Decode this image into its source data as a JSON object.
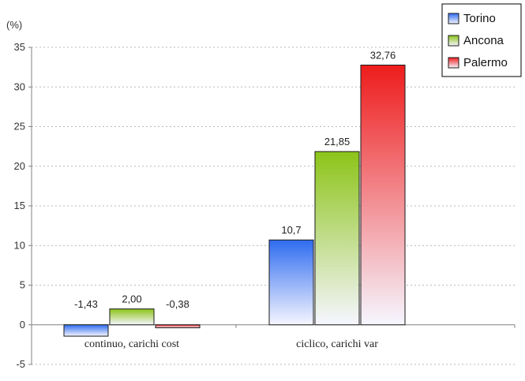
{
  "chart_data": {
    "type": "bar",
    "unit_label": "(%)",
    "categories": [
      "continuo, carichi cost",
      "ciclico, carichi var"
    ],
    "series": [
      {
        "name": "Torino",
        "values": [
          -1.43,
          10.7
        ],
        "labels": [
          "-1,43",
          "10,7"
        ],
        "color": "#2f6cf0"
      },
      {
        "name": "Ancona",
        "values": [
          2.0,
          21.85
        ],
        "labels": [
          "2,00",
          "21,85"
        ],
        "color": "#8cc418"
      },
      {
        "name": "Palermo",
        "values": [
          -0.38,
          32.76
        ],
        "labels": [
          "-0,38",
          "32,76"
        ],
        "color": "#ee1c1c"
      }
    ],
    "yticks": [
      "35",
      "30",
      "25",
      "20",
      "15",
      "10",
      "5",
      "0",
      "-5"
    ],
    "ylim": [
      -5,
      35
    ],
    "grid": true,
    "legend_position": "top-right"
  }
}
